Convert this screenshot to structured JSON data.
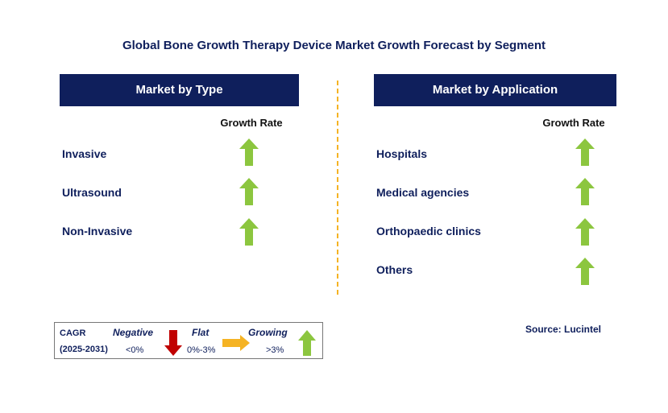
{
  "title": "Global Bone Growth Therapy Device Market Growth Forecast by Segment",
  "left_panel": {
    "header": "Market by Type",
    "column_label": "Growth Rate",
    "rows": [
      {
        "label": "Invasive",
        "trend": "growing"
      },
      {
        "label": "Ultrasound",
        "trend": "growing"
      },
      {
        "label": "Non-Invasive",
        "trend": "growing"
      }
    ]
  },
  "right_panel": {
    "header": "Market by Application",
    "column_label": "Growth Rate",
    "rows": [
      {
        "label": "Hospitals",
        "trend": "growing"
      },
      {
        "label": "Medical agencies",
        "trend": "growing"
      },
      {
        "label": "Orthopaedic clinics",
        "trend": "growing"
      },
      {
        "label": "Others",
        "trend": "growing"
      }
    ]
  },
  "legend": {
    "cagr_label": "CAGR",
    "period": "(2025-2031)",
    "negative": {
      "label": "Negative",
      "range": "<0%"
    },
    "flat": {
      "label": "Flat",
      "range": "0%-3%"
    },
    "growing": {
      "label": "Growing",
      "range": ">3%"
    }
  },
  "source": "Source: Lucintel",
  "colors": {
    "navy": "#0f1f5c",
    "growing_arrow": "#8cc63f",
    "negative_arrow": "#c00000",
    "flat_arrow": "#f5b324",
    "divider": "#f5b324"
  },
  "chart_data": {
    "type": "table",
    "title": "Global Bone Growth Therapy Device Market Growth Forecast by Segment",
    "segments": [
      {
        "name": "Market by Type",
        "column": "Growth Rate",
        "items": [
          {
            "category": "Invasive",
            "growth": "growing"
          },
          {
            "category": "Ultrasound",
            "growth": "growing"
          },
          {
            "category": "Non-Invasive",
            "growth": "growing"
          }
        ]
      },
      {
        "name": "Market by Application",
        "column": "Growth Rate",
        "items": [
          {
            "category": "Hospitals",
            "growth": "growing"
          },
          {
            "category": "Medical agencies",
            "growth": "growing"
          },
          {
            "category": "Orthopaedic clinics",
            "growth": "growing"
          },
          {
            "category": "Others",
            "growth": "growing"
          }
        ]
      }
    ],
    "legend": {
      "Negative": "<0%",
      "Flat": "0%-3%",
      "Growing": ">3%"
    }
  }
}
